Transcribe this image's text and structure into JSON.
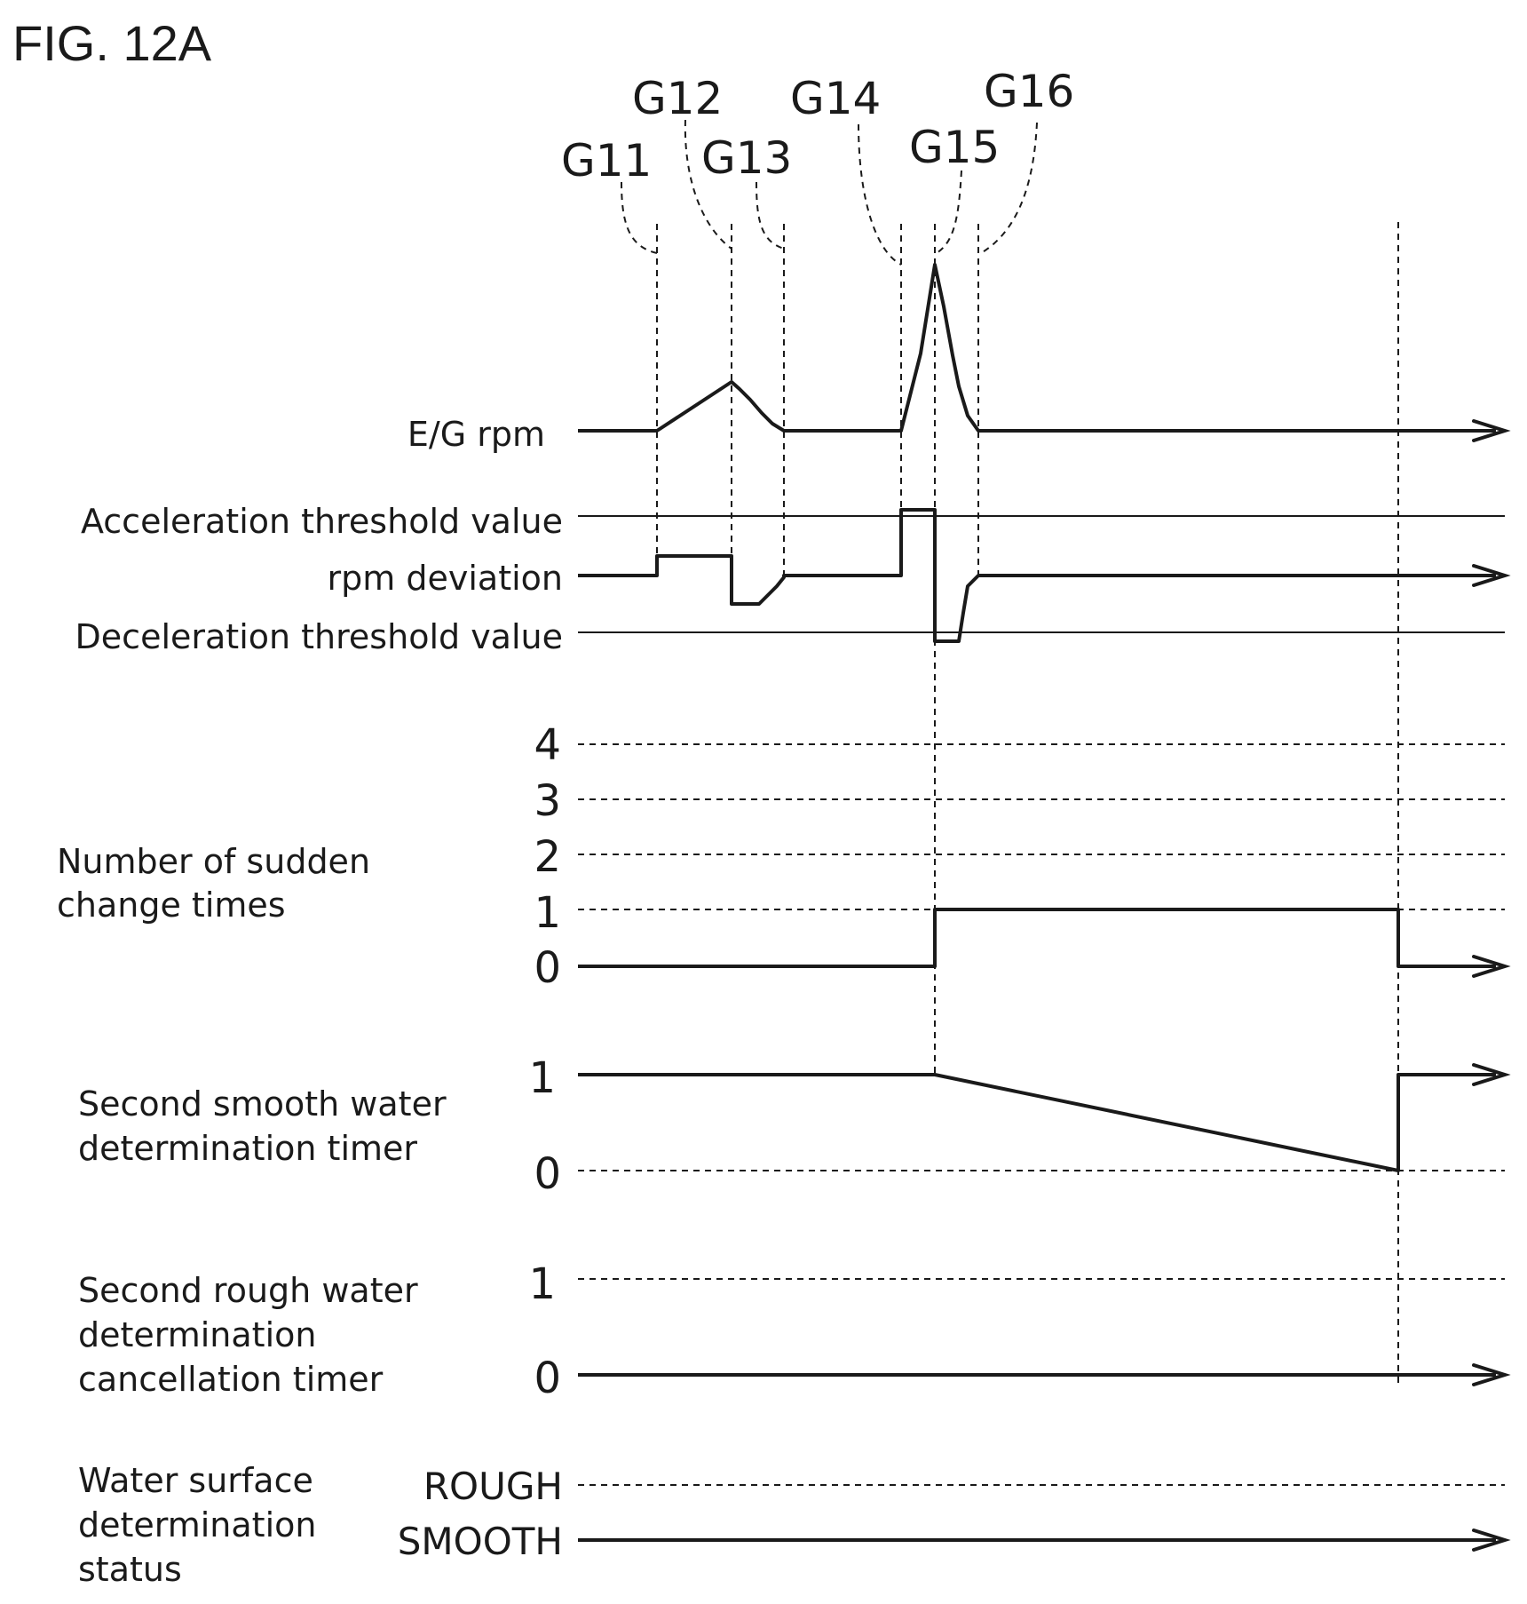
{
  "figure_title": "FIG. 12A",
  "time_markers": [
    "G11",
    "G12",
    "G13",
    "G14",
    "G15",
    "G16"
  ],
  "rows": {
    "eg_rpm": {
      "label": "E/G rpm"
    },
    "rpm_deviation": {
      "upper_label": "Acceleration threshold value",
      "label": "rpm deviation",
      "lower_label": "Deceleration threshold value"
    },
    "sudden_change": {
      "label_lines": [
        "Number of sudden",
        "change times"
      ],
      "ticks": [
        "4",
        "3",
        "2",
        "1",
        "0"
      ]
    },
    "smooth_timer": {
      "label_lines": [
        "Second smooth water",
        "determination timer"
      ],
      "ticks": [
        "1",
        "0"
      ]
    },
    "rough_cancel_timer": {
      "label_lines": [
        "Second rough water",
        "determination",
        "cancellation timer"
      ],
      "ticks": [
        "1",
        "0"
      ]
    },
    "water_surface_status": {
      "label_lines": [
        "Water surface",
        "determination",
        "status"
      ],
      "states": [
        "ROUGH",
        "SMOOTH"
      ]
    }
  }
}
